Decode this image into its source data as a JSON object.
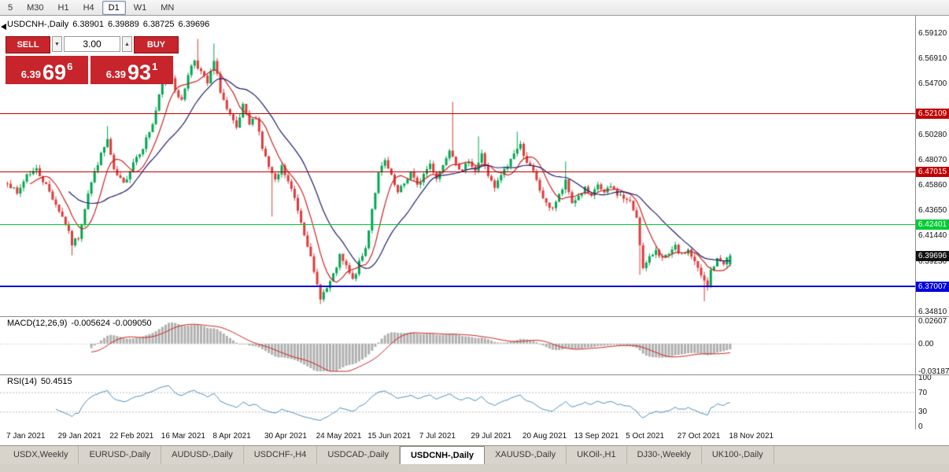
{
  "toolbar": {
    "timeframes": [
      {
        "label": "5",
        "active": false
      },
      {
        "label": "M30",
        "active": false
      },
      {
        "label": "H1",
        "active": false
      },
      {
        "label": "H4",
        "active": false
      },
      {
        "label": "D1",
        "active": true
      },
      {
        "label": "W1",
        "active": false
      },
      {
        "label": "MN",
        "active": false
      }
    ]
  },
  "trade_panel": {
    "sell_label": "SELL",
    "buy_label": "BUY",
    "lot": "3.00",
    "icons": {
      "lot_decrease": "▼",
      "lot_increase": "▲"
    },
    "sell_price": {
      "small": "6.39",
      "big": "69",
      "sup": "6"
    },
    "buy_price": {
      "small": "6.39",
      "big": "93",
      "sup": "1"
    },
    "panel_color": "#C8242B"
  },
  "tabs": [
    {
      "label": "USDX,Weekly",
      "active": false
    },
    {
      "label": "EURUSD-,Daily",
      "active": false
    },
    {
      "label": "AUDUSD-,Daily",
      "active": false
    },
    {
      "label": "USDCHF-,H4",
      "active": false
    },
    {
      "label": "USDCAD-,Daily",
      "active": false
    },
    {
      "label": "USDCNH-,Daily",
      "active": true
    },
    {
      "label": "XAUUSD-,Daily",
      "active": false
    },
    {
      "label": "UKOil-,H1",
      "active": false
    },
    {
      "label": "DJ30-,Weekly",
      "active": false
    },
    {
      "label": "UK100-,Daily",
      "active": false
    }
  ],
  "chart_data": {
    "type": "candlestick",
    "symbol": "USDCNH-",
    "timeframe": "Daily",
    "header": {
      "symbol": "USDCNH-,Daily",
      "o": "6.38901",
      "h": "6.39889",
      "l": "6.38725",
      "c": "6.39696"
    },
    "bars": 225,
    "price_min": 6.3453,
    "price_max": 6.6049,
    "last_bar": {
      "o": 6.38901,
      "h": 6.39889,
      "l": 6.38725,
      "c": 6.39696
    },
    "anchors": [
      [
        0,
        6.462
      ],
      [
        3,
        6.45
      ],
      [
        6,
        6.468
      ],
      [
        9,
        6.472
      ],
      [
        12,
        6.458
      ],
      [
        15,
        6.442
      ],
      [
        18,
        6.425
      ],
      [
        20,
        6.407
      ],
      [
        22,
        6.413
      ],
      [
        25,
        6.452
      ],
      [
        28,
        6.478
      ],
      [
        31,
        6.498
      ],
      [
        33,
        6.47
      ],
      [
        36,
        6.459
      ],
      [
        39,
        6.479
      ],
      [
        42,
        6.492
      ],
      [
        45,
        6.512
      ],
      [
        48,
        6.547
      ],
      [
        50,
        6.562
      ],
      [
        52,
        6.543
      ],
      [
        54,
        6.531
      ],
      [
        56,
        6.556
      ],
      [
        58,
        6.568
      ],
      [
        60,
        6.557
      ],
      [
        62,
        6.547
      ],
      [
        64,
        6.566
      ],
      [
        66,
        6.541
      ],
      [
        68,
        6.524
      ],
      [
        71,
        6.507
      ],
      [
        73,
        6.527
      ],
      [
        75,
        6.511
      ],
      [
        77,
        6.519
      ],
      [
        79,
        6.491
      ],
      [
        81,
        6.474
      ],
      [
        83,
        6.461
      ],
      [
        85,
        6.474
      ],
      [
        87,
        6.461
      ],
      [
        89,
        6.447
      ],
      [
        91,
        6.427
      ],
      [
        93,
        6.407
      ],
      [
        95,
        6.381
      ],
      [
        97,
        6.361
      ],
      [
        99,
        6.368
      ],
      [
        101,
        6.379
      ],
      [
        103,
        6.396
      ],
      [
        105,
        6.387
      ],
      [
        107,
        6.375
      ],
      [
        109,
        6.39
      ],
      [
        111,
        6.403
      ],
      [
        113,
        6.438
      ],
      [
        115,
        6.468
      ],
      [
        117,
        6.479
      ],
      [
        119,
        6.465
      ],
      [
        121,
        6.451
      ],
      [
        123,
        6.46
      ],
      [
        125,
        6.47
      ],
      [
        127,
        6.457
      ],
      [
        129,
        6.468
      ],
      [
        131,
        6.477
      ],
      [
        133,
        6.465
      ],
      [
        135,
        6.476
      ],
      [
        137,
        6.491
      ],
      [
        139,
        6.479
      ],
      [
        141,
        6.469
      ],
      [
        143,
        6.481
      ],
      [
        145,
        6.471
      ],
      [
        147,
        6.485
      ],
      [
        149,
        6.467
      ],
      [
        151,
        6.455
      ],
      [
        153,
        6.467
      ],
      [
        155,
        6.475
      ],
      [
        157,
        6.487
      ],
      [
        159,
        6.493
      ],
      [
        161,
        6.479
      ],
      [
        163,
        6.469
      ],
      [
        165,
        6.454
      ],
      [
        167,
        6.441
      ],
      [
        169,
        6.439
      ],
      [
        171,
        6.449
      ],
      [
        173,
        6.461
      ],
      [
        175,
        6.443
      ],
      [
        177,
        6.449
      ],
      [
        179,
        6.455
      ],
      [
        181,
        6.447
      ],
      [
        183,
        6.459
      ],
      [
        185,
        6.451
      ],
      [
        187,
        6.457
      ],
      [
        189,
        6.451
      ],
      [
        191,
        6.447
      ],
      [
        193,
        6.443
      ],
      [
        195,
        6.431
      ],
      [
        197,
        6.385
      ],
      [
        199,
        6.394
      ],
      [
        201,
        6.403
      ],
      [
        203,
        6.394
      ],
      [
        205,
        6.397
      ],
      [
        207,
        6.404
      ],
      [
        209,
        6.397
      ],
      [
        211,
        6.402
      ],
      [
        213,
        6.391
      ],
      [
        215,
        6.379
      ],
      [
        217,
        6.369
      ],
      [
        218,
        6.384
      ],
      [
        220,
        6.393
      ],
      [
        222,
        6.391
      ],
      [
        224,
        6.39696
      ]
    ],
    "spikes": [
      {
        "i": 20,
        "low": 6.397
      },
      {
        "i": 31,
        "high": 6.51
      },
      {
        "i": 59,
        "high": 6.586
      },
      {
        "i": 64,
        "high": 6.582
      },
      {
        "i": 82,
        "low": 6.431
      },
      {
        "i": 97,
        "low": 6.3545
      },
      {
        "i": 138,
        "high": 6.531
      },
      {
        "i": 146,
        "high": 6.501
      },
      {
        "i": 158,
        "high": 6.505
      },
      {
        "i": 173,
        "high": 6.479
      },
      {
        "i": 196,
        "low": 6.38
      },
      {
        "i": 216,
        "low": 6.357
      }
    ],
    "y_axis_labels": [
      {
        "text": "6.59120",
        "price": 6.5912
      },
      {
        "text": "6.56910",
        "price": 6.5691
      },
      {
        "text": "6.54700",
        "price": 6.547
      },
      {
        "text": "6.50280",
        "price": 6.5028
      },
      {
        "text": "6.48070",
        "price": 6.4807
      },
      {
        "text": "6.45860",
        "price": 6.4586
      },
      {
        "text": "6.43650",
        "price": 6.4365
      },
      {
        "text": "6.41440",
        "price": 6.4144
      },
      {
        "text": "6.39230",
        "price": 6.3923
      },
      {
        "text": "6.34810",
        "price": 6.3481
      }
    ],
    "x_labels": [
      {
        "i": 0,
        "text": "7 Jan 2021"
      },
      {
        "i": 16,
        "text": "29 Jan 2021"
      },
      {
        "i": 32,
        "text": "22 Feb 2021"
      },
      {
        "i": 48,
        "text": "16 Mar 2021"
      },
      {
        "i": 64,
        "text": "8 Apr 2021"
      },
      {
        "i": 80,
        "text": "30 Apr 2021"
      },
      {
        "i": 96,
        "text": "24 May 2021"
      },
      {
        "i": 112,
        "text": "15 Jun 2021"
      },
      {
        "i": 128,
        "text": "7 Jul 2021"
      },
      {
        "i": 144,
        "text": "29 Jul 2021"
      },
      {
        "i": 160,
        "text": "20 Aug 2021"
      },
      {
        "i": 176,
        "text": "13 Sep 2021"
      },
      {
        "i": 192,
        "text": "5 Oct 2021"
      },
      {
        "i": 208,
        "text": "27 Oct 2021"
      },
      {
        "i": 224,
        "text": "18 Nov 2021"
      }
    ],
    "hlines": [
      {
        "price": 6.52109,
        "label": "6.52109",
        "color": "#C00000",
        "thickness": 1
      },
      {
        "price": 6.47015,
        "label": "6.47015",
        "color": "#C00000",
        "thickness": 1
      },
      {
        "price": 6.42401,
        "label": "6.42401",
        "color": "#00CC33",
        "thickness": 1
      },
      {
        "price": 6.37007,
        "label": "6.37007",
        "color": "#0000E0",
        "thickness": 2
      }
    ],
    "current_price": {
      "label": "6.39696",
      "price": 6.39696,
      "bg": "#111111"
    },
    "mas": [
      {
        "period": 8,
        "color": "#CC2222"
      },
      {
        "period": 20,
        "color": "#1C1C70"
      }
    ],
    "indicators": {
      "macd": {
        "name": "MACD(12,26,9)",
        "values": "-0.005624 -0.009050",
        "params": [
          12,
          26,
          9
        ],
        "range": [
          -0.0319,
          0.0261
        ],
        "axis": [
          {
            "text": "0.02607",
            "value": 0.02607
          },
          {
            "text": "0.00",
            "value": 0
          },
          {
            "text": "-0.03187",
            "value": -0.03187
          }
        ],
        "hist_color": "#B0B0B0",
        "signal_color": "#CC2222"
      },
      "rsi": {
        "name": "RSI(14)",
        "value": "50.4515",
        "period": 14,
        "levels": [
          70,
          30
        ],
        "axis": [
          {
            "text": "100",
            "value": 100
          },
          {
            "text": "70",
            "value": 70
          },
          {
            "text": "30",
            "value": 30
          },
          {
            "text": "0",
            "value": 0
          }
        ],
        "color": "#4E8FBE"
      }
    },
    "colors": {
      "bull": "#00A650",
      "bear": "#E03A3A"
    }
  }
}
